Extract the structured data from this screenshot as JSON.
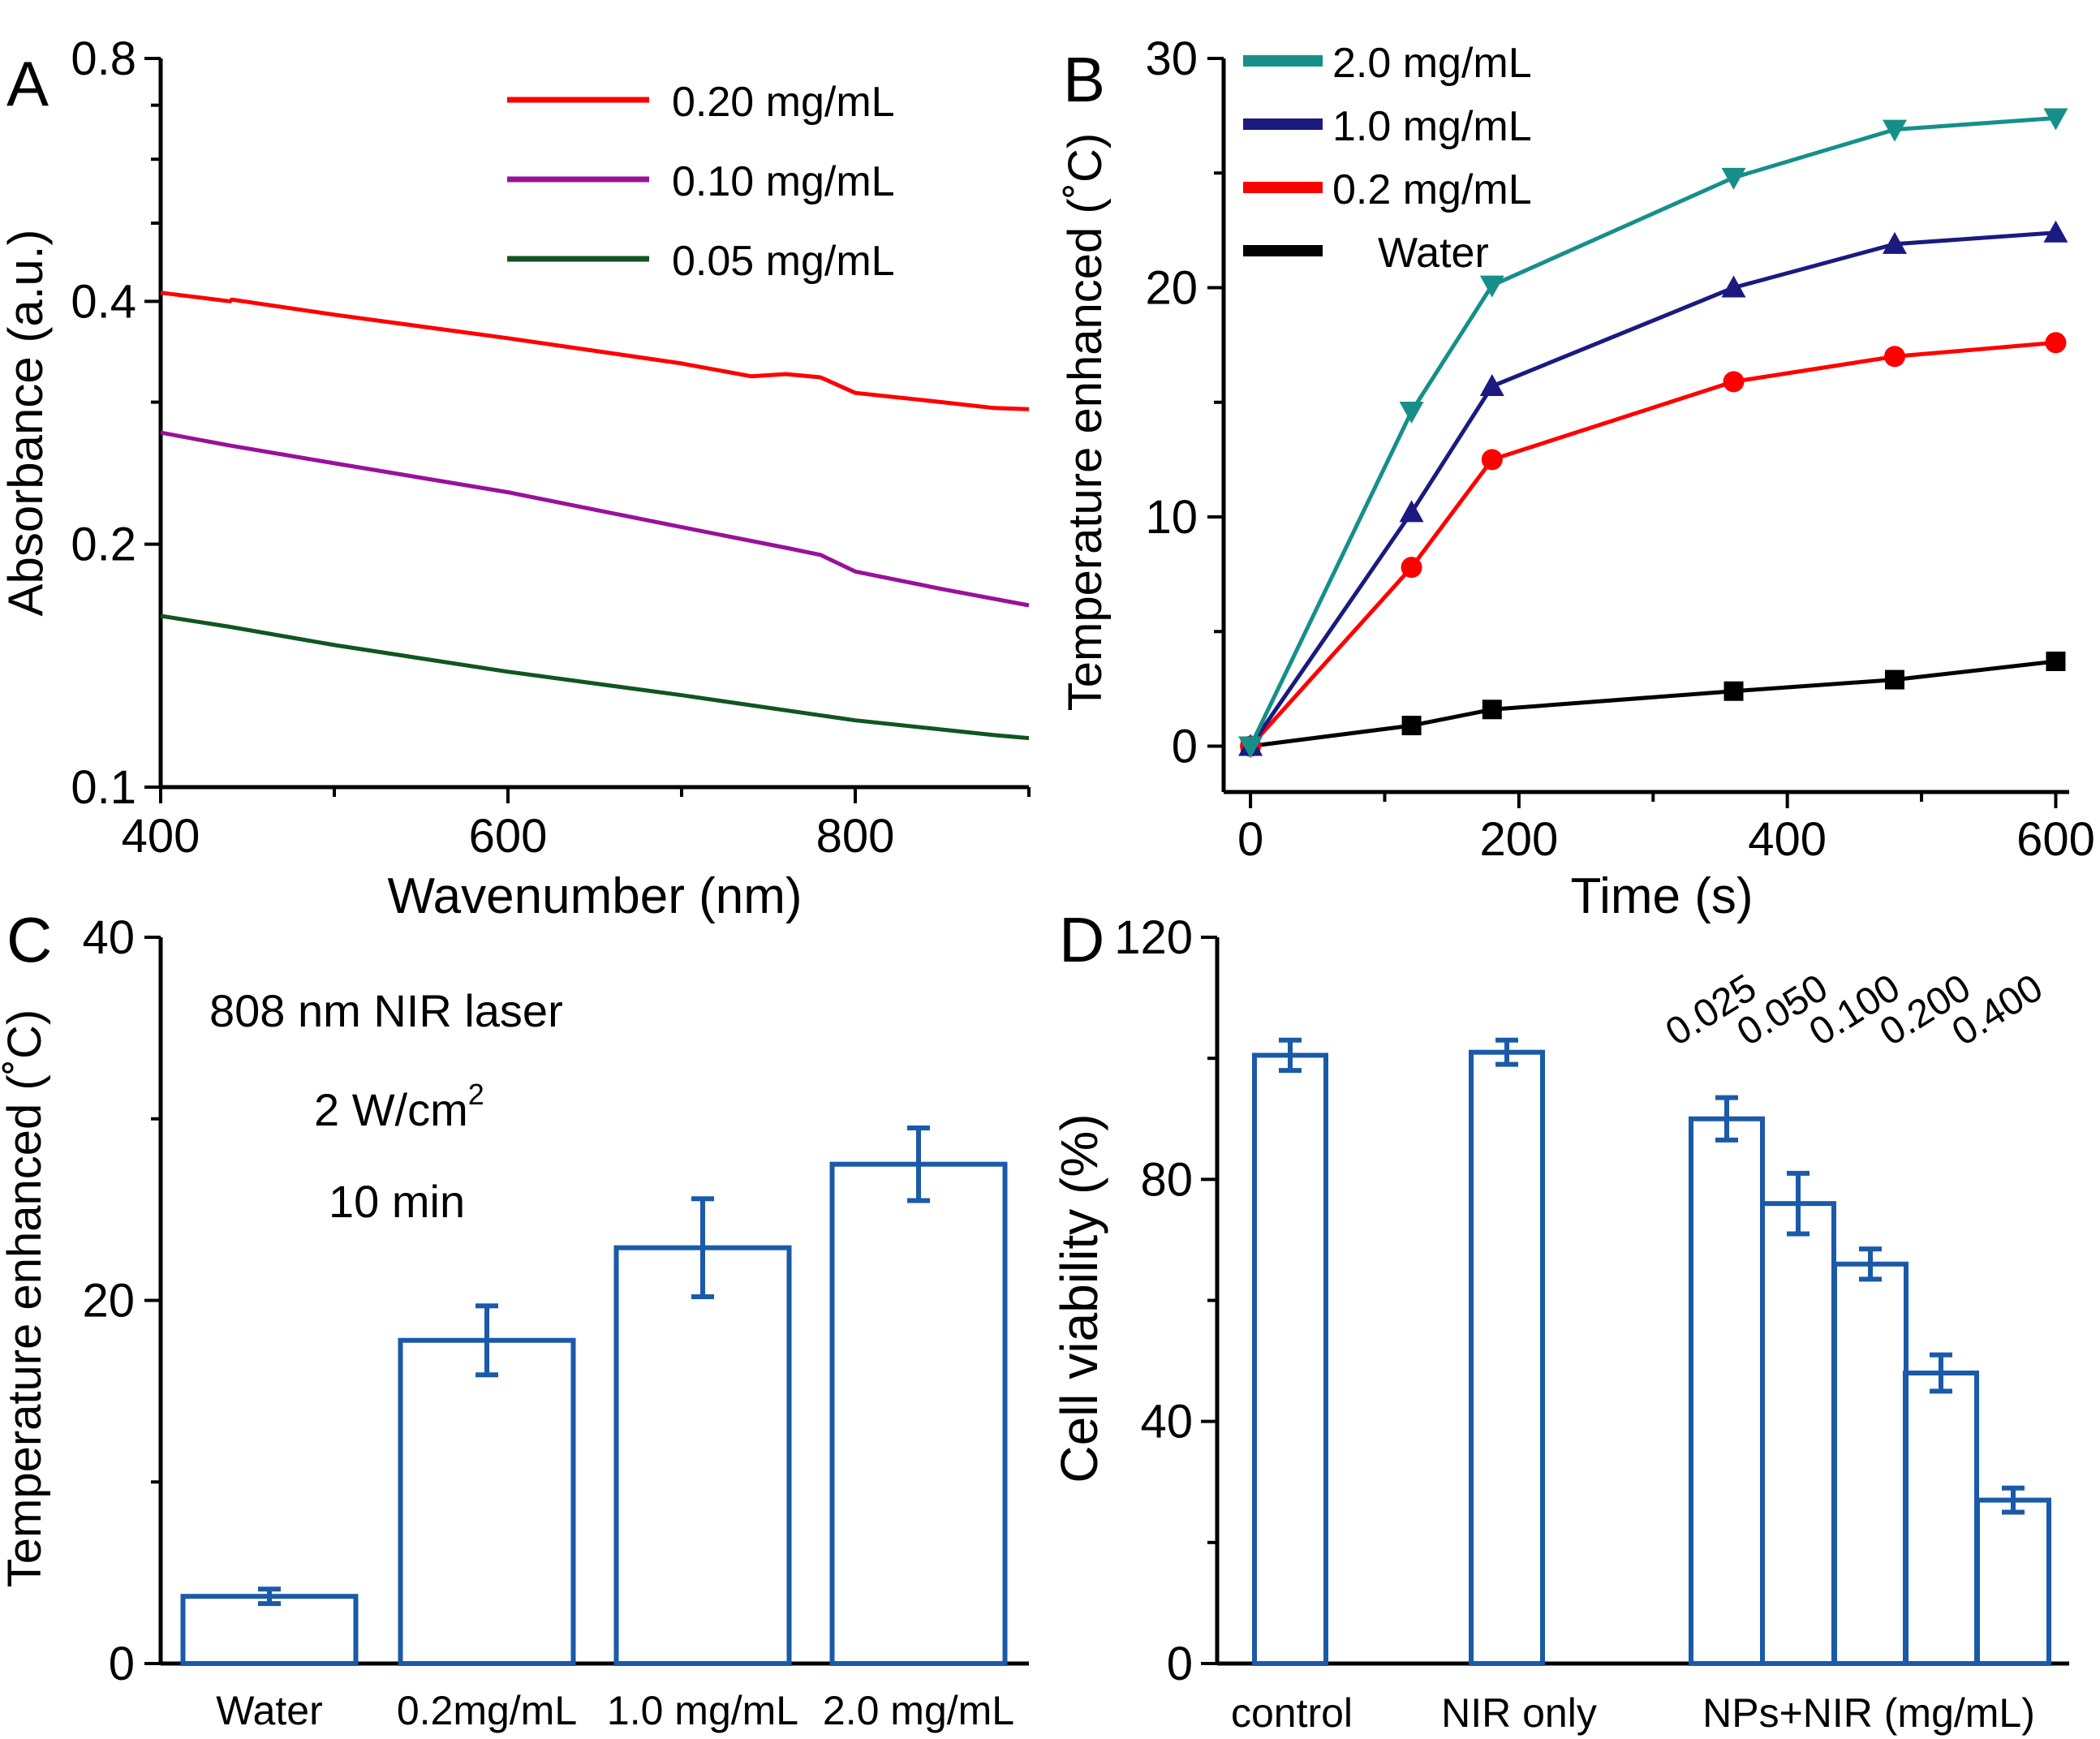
{
  "chart_data": [
    {
      "panel": "A",
      "type": "line",
      "xlabel": "Wavenumber (nm)",
      "ylabel": "Absorbance (a.u.)",
      "xlim": [
        400,
        900
      ],
      "ylim": [
        0.1,
        0.8
      ],
      "y_scale": "log",
      "xticks": [
        400,
        600,
        800
      ],
      "yticks": [
        0.1,
        0.2,
        0.4,
        0.8
      ],
      "series": [
        {
          "name": "0.20 mg/mL",
          "color": "#ff0000",
          "x": [
            400,
            440,
            441,
            500,
            600,
            700,
            740,
            760,
            780,
            800,
            850,
            880,
            900
          ],
          "y": [
            0.41,
            0.4,
            0.402,
            0.385,
            0.36,
            0.335,
            0.323,
            0.325,
            0.322,
            0.308,
            0.3,
            0.295,
            0.294
          ]
        },
        {
          "name": "0.10 mg/mL",
          "color": "#991199",
          "x": [
            400,
            440,
            500,
            600,
            700,
            760,
            780,
            800,
            850,
            900
          ],
          "y": [
            0.275,
            0.265,
            0.252,
            0.232,
            0.21,
            0.198,
            0.194,
            0.185,
            0.176,
            0.168
          ]
        },
        {
          "name": "0.05 mg/mL",
          "color": "#115522",
          "x": [
            400,
            440,
            500,
            600,
            700,
            800,
            880,
            900
          ],
          "y": [
            0.163,
            0.158,
            0.15,
            0.139,
            0.13,
            0.121,
            0.116,
            0.115
          ]
        }
      ]
    },
    {
      "panel": "B",
      "type": "line",
      "xlabel": "Time (s)",
      "ylabel": "Temperature enhanced (˚C)",
      "xlim": [
        -20,
        610
      ],
      "ylim": [
        -2,
        30
      ],
      "xticks": [
        0,
        200,
        400,
        600
      ],
      "yticks": [
        0,
        10,
        20,
        30
      ],
      "x": [
        0,
        120,
        180,
        360,
        480,
        600
      ],
      "series": [
        {
          "name": "2.0 mg/mL",
          "color": "#168f8b",
          "marker": "triangle-down",
          "values": [
            0,
            14.6,
            20.1,
            24.8,
            26.9,
            27.4
          ]
        },
        {
          "name": "1.0 mg/mL",
          "color": "#1b1a80",
          "marker": "triangle-up",
          "values": [
            0,
            10.2,
            15.7,
            20.0,
            21.9,
            22.4
          ]
        },
        {
          "name": "0.2 mg/mL",
          "color": "#ff0000",
          "marker": "circle",
          "values": [
            0,
            7.8,
            12.5,
            15.9,
            17.0,
            17.6
          ]
        },
        {
          "name": "Water",
          "color": "#000000",
          "marker": "square",
          "values": [
            0,
            0.9,
            1.6,
            2.4,
            2.9,
            3.7
          ]
        }
      ]
    },
    {
      "panel": "C",
      "type": "bar",
      "ylabel": "Temperature enhanced (˚C)",
      "ylim": [
        0,
        40
      ],
      "yticks": [
        0,
        20,
        40
      ],
      "categories": [
        "Water",
        "0.2mg/mL",
        "1.0 mg/mL",
        "2.0 mg/mL"
      ],
      "values": [
        3.7,
        17.8,
        22.9,
        27.5
      ],
      "errors": [
        0.4,
        1.9,
        2.7,
        2.0
      ],
      "bar_color": "#1a5aa8",
      "annotations": {
        "line1": "808 nm NIR laser",
        "line2": "2 W/cm",
        "line2_sup": "2",
        "line3": "10 min"
      }
    },
    {
      "panel": "D",
      "type": "bar",
      "ylabel": "Cell viability (%)",
      "ylim": [
        0,
        120
      ],
      "yticks": [
        0,
        40,
        80,
        120
      ],
      "groups": [
        "control",
        "NIR only",
        "NPs+NIR (mg/mL)"
      ],
      "bars": [
        {
          "group": "control",
          "label": "",
          "value": 100.5,
          "error": 2.5
        },
        {
          "group": "NIR only",
          "label": "",
          "value": 101,
          "error": 2.0
        },
        {
          "group": "NPs+NIR (mg/mL)",
          "label": "0.025",
          "value": 90,
          "error": 3.5
        },
        {
          "group": "NPs+NIR (mg/mL)",
          "label": "0.050",
          "value": 76,
          "error": 5.0
        },
        {
          "group": "NPs+NIR (mg/mL)",
          "label": "0.100",
          "value": 66,
          "error": 2.5
        },
        {
          "group": "NPs+NIR (mg/mL)",
          "label": "0.200",
          "value": 48,
          "error": 3.0
        },
        {
          "group": "NPs+NIR (mg/mL)",
          "label": "0.400",
          "value": 27,
          "error": 2.0
        }
      ],
      "bar_color": "#1a5aa8"
    }
  ]
}
